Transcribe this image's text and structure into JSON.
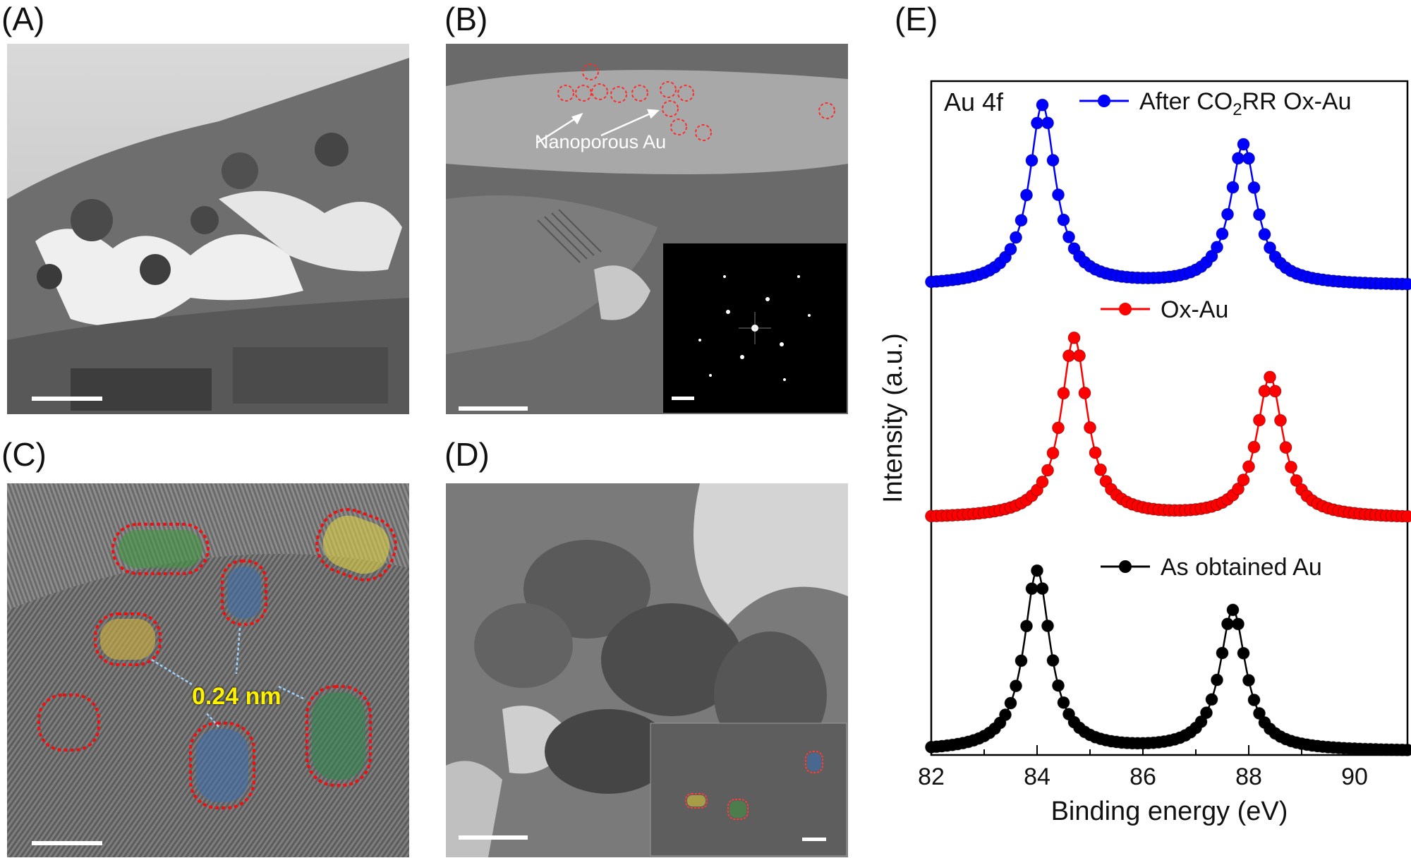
{
  "panels": {
    "a": {
      "label": "(A)"
    },
    "b": {
      "label": "(B)",
      "annotation": "Nanoporous Au"
    },
    "c": {
      "label": "(C)",
      "annotation": "0.24 nm"
    },
    "d": {
      "label": "(D)"
    },
    "e": {
      "label": "(E)"
    }
  },
  "chart_data": {
    "type": "line",
    "title": "Au 4f",
    "xlabel": "Binding energy (eV)",
    "ylabel": "Intensity (a.u.)",
    "xlim": [
      82,
      91
    ],
    "x_ticks": [
      "82",
      "84",
      "86",
      "88",
      "90"
    ],
    "y_ticks": [],
    "grid": false,
    "legend_placement": "inline, above each trace",
    "series": [
      {
        "name": "After CO2RR Ox-Au",
        "name_parts": [
          "After CO",
          "2",
          "RR Ox-Au"
        ],
        "color": "#0000ff",
        "peaks_ev": [
          84.1,
          87.9
        ],
        "peak_heights": [
          1.0,
          0.78
        ],
        "offset": 2.0,
        "width_ev": 0.3
      },
      {
        "name": "Ox-Au",
        "color": "#ff0000",
        "peaks_ev": [
          84.7,
          88.4
        ],
        "peak_heights": [
          1.0,
          0.78
        ],
        "offset": 1.0,
        "width_ev": 0.3
      },
      {
        "name": "As obtained Au",
        "color": "#000000",
        "peaks_ev": [
          84.0,
          87.7
        ],
        "peak_heights": [
          1.0,
          0.78
        ],
        "offset": 0.0,
        "width_ev": 0.3
      }
    ]
  }
}
